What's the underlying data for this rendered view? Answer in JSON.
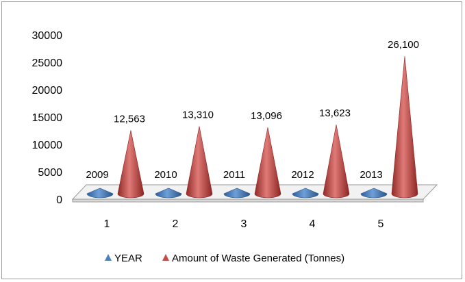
{
  "chart_data": {
    "type": "bar",
    "shape": "cone-3d",
    "categories": [
      "1",
      "2",
      "3",
      "4",
      "5"
    ],
    "series": [
      {
        "name": "YEAR",
        "values": [
          2009,
          2010,
          2011,
          2012,
          2013
        ],
        "labels": [
          "2009",
          "2010",
          "2011",
          "2012",
          "2013"
        ],
        "color": "#4F81BD"
      },
      {
        "name": "Amount of Waste Generated (Tonnes)",
        "values": [
          12563,
          13310,
          13096,
          13623,
          26100
        ],
        "labels": [
          "12,563",
          "13,310",
          "13,096",
          "13,623",
          "26,100"
        ],
        "color": "#C0504D"
      }
    ],
    "yticks": [
      "0",
      "5000",
      "10000",
      "15000",
      "20000",
      "25000",
      "30000"
    ],
    "ylim": [
      0,
      30000
    ],
    "title": "",
    "xlabel": "",
    "ylabel": "",
    "grid": false,
    "legend": "bottom"
  }
}
